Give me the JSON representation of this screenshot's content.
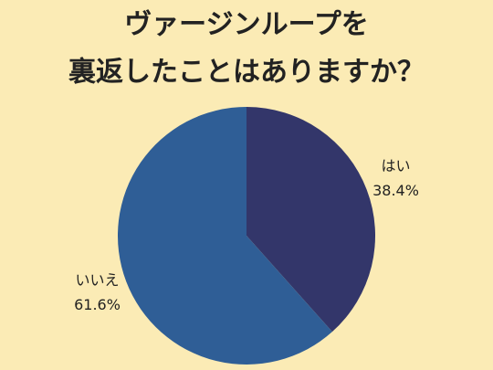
{
  "chart_data": {
    "type": "pie",
    "title": [
      "ヴァージンループを",
      "裏返したことはありますか？"
    ],
    "categories": [
      "はい",
      "いいえ"
    ],
    "values": [
      38.4,
      61.6
    ],
    "value_labels": [
      "38.4%",
      "61.6%"
    ],
    "colors": [
      "#33366a",
      "#2f5e96"
    ]
  }
}
